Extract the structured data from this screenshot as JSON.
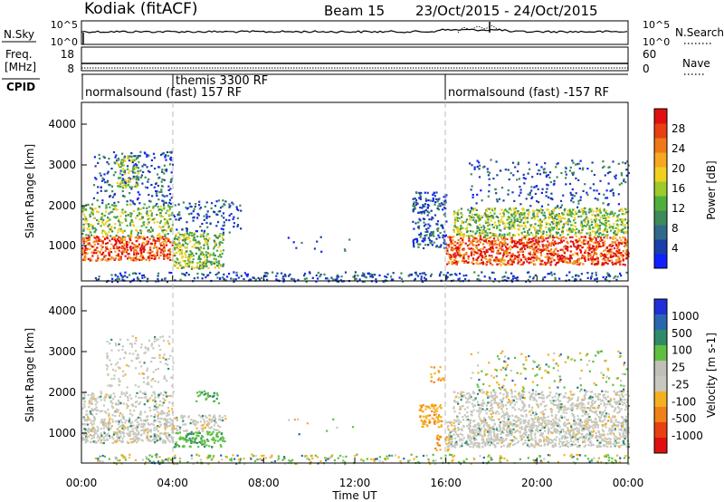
{
  "header": {
    "station": "Kodiak (fitACF)",
    "beam": "Beam 15",
    "dates": "23/Oct/2015 - 24/Oct/2015"
  },
  "sky_panel": {
    "left_label": "N.Sky",
    "left_ticks": [
      "10^5",
      "10^0"
    ],
    "right_ticks": [
      "10^5",
      "10^0"
    ],
    "right_label": "N.Search"
  },
  "freq_panel": {
    "left_label_line1": "Freq.",
    "left_label_line2": "[MHz]",
    "left_ticks": [
      "18",
      "8"
    ],
    "right_ticks": [
      "60",
      "0"
    ],
    "right_label": "Nave"
  },
  "cpid": {
    "label": "CPID",
    "segments": [
      {
        "start_hour": 0,
        "end_hour": 4,
        "text": "normalsound (fast) 157 RF"
      },
      {
        "start_hour": 4,
        "end_hour": 16,
        "text": "themis 3300 RF"
      },
      {
        "start_hour": 16,
        "end_hour": 24,
        "text": "normalsound (fast) -157 RF"
      }
    ]
  },
  "chart_data": [
    {
      "type": "heatmap",
      "name": "power",
      "ylabel": "Slant Range [km]",
      "ylim": [
        180,
        4600
      ],
      "yticks": [
        "1000",
        "2000",
        "3000",
        "4000"
      ],
      "colorbar_label": "Power [dB]",
      "colorbar_ticks": [
        "4",
        "8",
        "12",
        "16",
        "20",
        "24",
        "28"
      ],
      "colorbar_colors": [
        "#1020ff",
        "#1a3fa8",
        "#2f6a8a",
        "#3d8a5a",
        "#4faf3c",
        "#9ccb2a",
        "#f0d020",
        "#f5a820",
        "#f07818",
        "#e84010",
        "#e01010"
      ],
      "colorbar_range": [
        0,
        32
      ]
    },
    {
      "type": "heatmap",
      "name": "velocity",
      "ylabel": "Slant Range [km]",
      "ylim": [
        180,
        4600
      ],
      "yticks": [
        "1000",
        "2000",
        "3000",
        "4000"
      ],
      "colorbar_label": "Velocity [m s-1]",
      "colorbar_ticks": [
        "1000",
        "500",
        "100",
        "25",
        "-25",
        "-100",
        "-500",
        "-1000"
      ],
      "colorbar_colors": [
        "#2030d8",
        "#2a66b0",
        "#2f8a6a",
        "#5fc040",
        "#c0c0b8",
        "#c8c8c0",
        "#f5b020",
        "#f08018",
        "#e84010",
        "#e01010"
      ]
    }
  ],
  "time_axis": {
    "ticks": [
      "00:00",
      "04:00",
      "08:00",
      "12:00",
      "16:00",
      "20:00",
      "00:00"
    ],
    "label": "Time UT",
    "range_hours": [
      0,
      24
    ]
  }
}
